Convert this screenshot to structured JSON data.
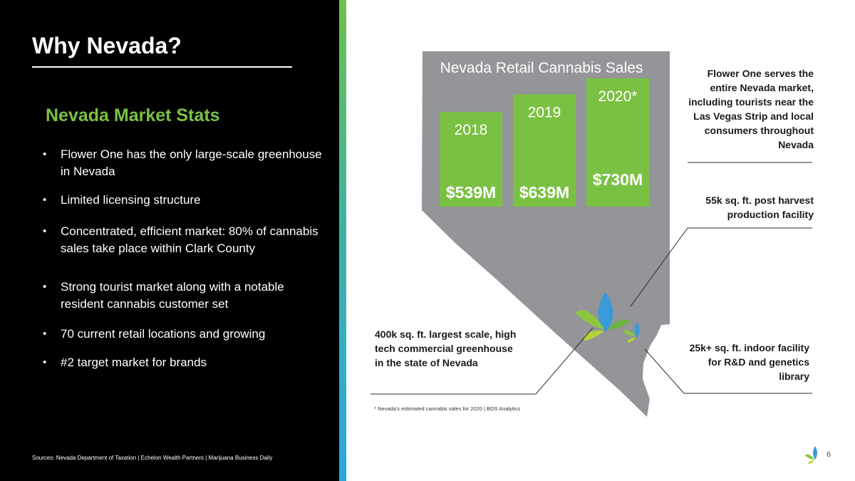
{
  "slide": {
    "title": "Why Nevada?",
    "subtitle": "Nevada Market Stats",
    "bullets": [
      "Flower One has the only large-scale greenhouse in Nevada",
      "Limited licensing structure",
      "Concentrated, efficient market: 80% of cannabis sales take place within Clark County",
      "Strong tourist market along with a notable resident cannabis customer set",
      "70 current retail locations and growing",
      "#2 target market for brands"
    ],
    "sources": "Sources: Nevada Department of Taxation | Echelon Wealth Partners | Marijuana Business Daily",
    "page_number": "6",
    "callouts": {
      "top_right": "Flower One serves the entire Nevada market, including tourists near the Las Vegas Strip and local consumers throughout Nevada",
      "mid_right": "55k sq. ft. post harvest production facility",
      "bottom_right": "25k+ sq. ft. indoor facility for R&D and genetics library",
      "bottom_left": "400k sq. ft. largest scale, high tech commercial greenhouse in the state of Nevada"
    },
    "footnote": "* Nevada's estimated cannabis sales for 2020 | BDS Analytics",
    "colors": {
      "background_left": "#000000",
      "accent_green": "#7ac143",
      "bar_green": "#7ac143",
      "map_gray": "#939598",
      "stripe_top": "#6cc24a",
      "stripe_bottom": "#2aa7df",
      "leaf_blue": "#3a9ad9"
    },
    "icons": [
      "leaf-logo-icon",
      "leaf-marker-icon"
    ]
  },
  "chart_data": {
    "type": "bar",
    "title": "Nevada Retail Cannabis Sales",
    "categories": [
      "2018",
      "2019",
      "2020*"
    ],
    "values": [
      539,
      639,
      730
    ],
    "value_labels": [
      "$539M",
      "$639M",
      "$730M"
    ],
    "unit": "$M",
    "xlabel": "",
    "ylabel": "",
    "grid": false,
    "legend": "none"
  }
}
